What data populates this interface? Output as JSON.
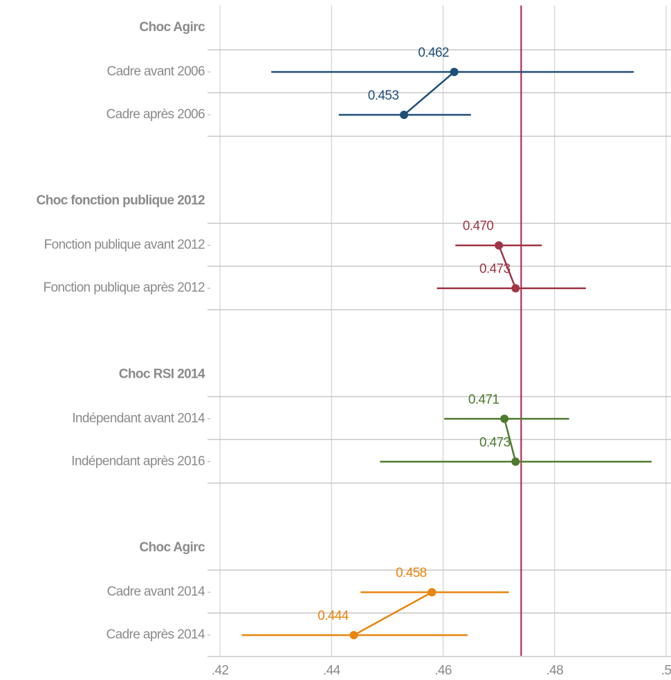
{
  "chart_data": {
    "type": "dot-whisker",
    "xlim": [
      0.42,
      0.5
    ],
    "xticks": [
      {
        "value": 0.42,
        "label": ".42"
      },
      {
        "value": 0.44,
        "label": ".44"
      },
      {
        "value": 0.46,
        "label": ".46"
      },
      {
        "value": 0.48,
        "label": ".48"
      },
      {
        "value": 0.5,
        "label": ".5"
      }
    ],
    "grid": true,
    "refline": {
      "value": 0.474,
      "color": "#b0174a"
    },
    "series": [
      {
        "name": "Choc Agirc",
        "color": "#1f4e79",
        "categories": [
          "Cadre avant 2006",
          "Cadre après 2006"
        ],
        "values": [
          0.462,
          0.453
        ],
        "value_labels": [
          "0.462",
          "0.453"
        ],
        "ci": [
          [
            0.4292,
            0.4942
          ],
          [
            0.4413,
            0.465
          ]
        ]
      },
      {
        "name": "Choc fonction publique 2012",
        "color": "#a03545",
        "categories": [
          "Fonction publique avant 2012",
          "Fonction publique après 2012"
        ],
        "values": [
          0.47,
          0.473
        ],
        "value_labels": [
          "0.470",
          "0.473"
        ],
        "ci": [
          [
            0.4622,
            0.4777
          ],
          [
            0.4589,
            0.4856
          ]
        ]
      },
      {
        "name": "Choc RSI 2014",
        "color": "#4e7a2e",
        "categories": [
          "Indépendant avant 2014",
          "Indépendant après 2016"
        ],
        "values": [
          0.471,
          0.473
        ],
        "value_labels": [
          "0.471",
          "0.473"
        ],
        "ci": [
          [
            0.4602,
            0.4826
          ],
          [
            0.4487,
            0.4974
          ]
        ]
      },
      {
        "name": "Choc Agirc",
        "color": "#e8850c",
        "categories": [
          "Cadre avant 2014",
          "Cadre après 2014"
        ],
        "values": [
          0.458,
          0.444
        ],
        "value_labels": [
          "0.458",
          "0.444"
        ],
        "ci": [
          [
            0.4452,
            0.4718
          ],
          [
            0.4239,
            0.4644
          ]
        ]
      }
    ]
  }
}
